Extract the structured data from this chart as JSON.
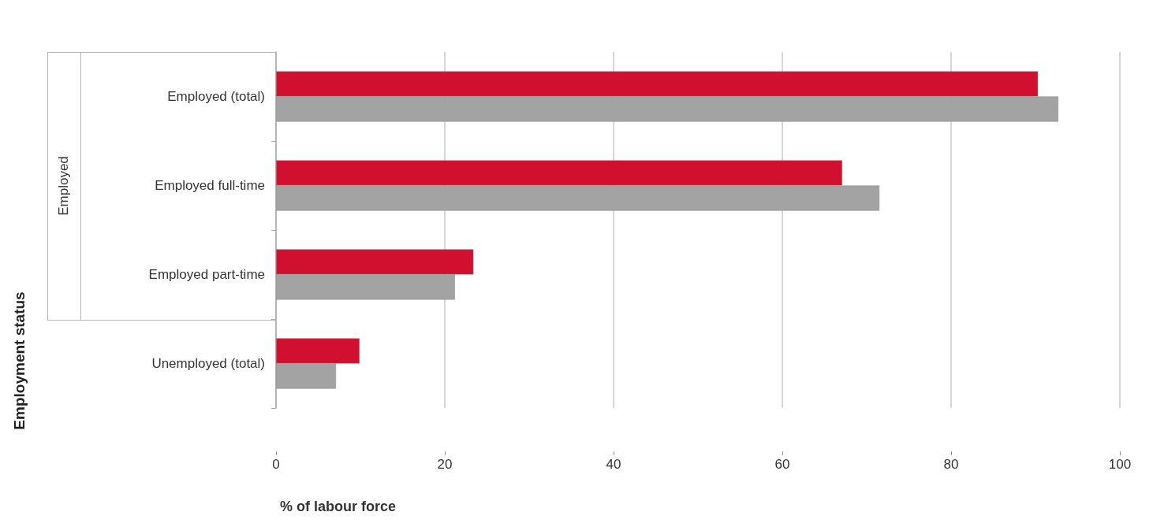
{
  "chart_data": {
    "type": "bar",
    "orientation": "horizontal",
    "categories": [
      "Employed (total)",
      "Employed full-time",
      "Employed part-time",
      "Unemployed (total)"
    ],
    "series": [
      {
        "color": "#d0102e",
        "values": [
          90.3,
          67.1,
          23.4,
          9.9
        ]
      },
      {
        "color": "#a3a3a3",
        "values": [
          92.7,
          71.5,
          21.2,
          7.1
        ]
      }
    ],
    "xlabel": "% of labour force",
    "annotations": [
      "Employed",
      "Employment status"
    ],
    "xlim": [
      0,
      100
    ],
    "xticks": [
      0,
      20,
      40,
      60,
      80,
      100
    ],
    "grid": "x"
  }
}
